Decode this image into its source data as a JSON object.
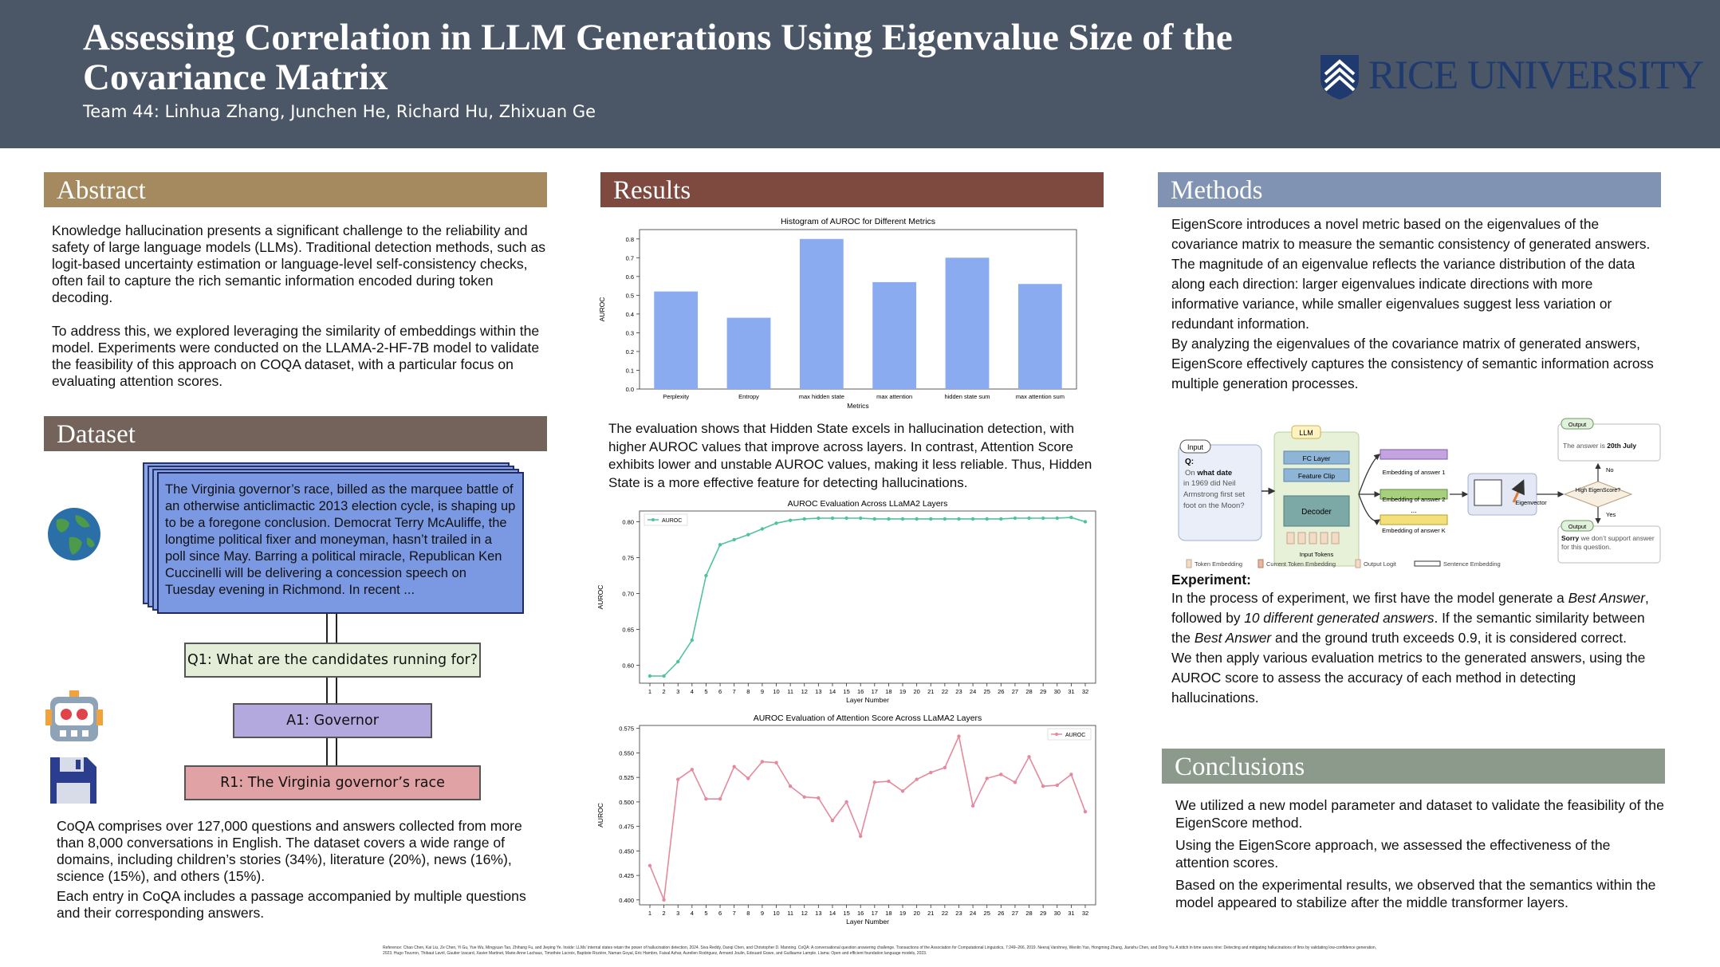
{
  "header": {
    "title_line1": "Assessing Correlation in LLM Generations Using Eigenvalue Size of the",
    "title_line2": "Covariance Matrix",
    "authors": "Team 44: Linhua Zhang, Junchen He, Richard Hu, Zhixuan Ge",
    "logo_text": "RICE UNIVERSITY"
  },
  "colors": {
    "header": "#4b5667",
    "abstract": "#a58a60",
    "dataset": "#74635a",
    "results": "#7e4a40",
    "methods": "#8193b2",
    "conclusions": "#8b9a8a"
  },
  "abstract": {
    "heading": "Abstract",
    "p1": "Knowledge hallucination presents a significant challenge to the reliability and safety of large language models (LLMs). Traditional detection methods, such as logit-based uncertainty estimation or language-level self-consistency checks, often fail to capture the rich semantic information encoded during token decoding.",
    "p2": "To address this, we explored leveraging the similarity of embeddings within the model. Experiments were conducted on the LLAMA-2-HF-7B model to validate the feasibility of this approach on COQA dataset, with a particular focus on evaluating attention scores."
  },
  "dataset": {
    "heading": "Dataset",
    "passage": "The Virginia governor’s race, billed as the marquee battle of an otherwise anticlimactic 2013 election cycle, is shaping up to be a foregone conclusion. Democrat Terry McAuliffe, the longtime political fixer and moneyman, hasn’t trailed in a poll since May. Barring a political miracle, Republican Ken Cuccinelli will be delivering a concession speech on Tuesday evening in Richmond. In recent ...",
    "q1": "Q1: What are the candidates running for?",
    "a1": "A1: Governor",
    "r1": "R1: The Virginia governor’s race",
    "p1": "CoQA comprises over 127,000 questions and answers collected from more than 8,000 conversations in English. The dataset covers a wide range of domains, including children’s stories (34%), literature (20%), news (16%), science (15%), and others (15%).",
    "p2": "Each entry in CoQA includes a passage accompanied by multiple questions and their corresponding answers.",
    "icons": [
      "globe-icon",
      "robot-icon",
      "floppy-disk-icon"
    ]
  },
  "results": {
    "heading": "Results",
    "text": "The evaluation shows that Hidden State excels in hallucination detection, with higher AUROC values that improve across layers. In contrast, Attention Score exhibits lower and unstable AUROC values, making it less reliable. Thus, Hidden State is a more effective feature for detecting hallucinations."
  },
  "chart_data": [
    {
      "type": "bar",
      "title": "Histogram of AUROC for Different Metrics",
      "xlabel": "Metrics",
      "ylabel": "AUROC",
      "categories": [
        "Perplexity",
        "Entropy",
        "max hidden state",
        "max attention",
        "hidden state sum",
        "max attention sum"
      ],
      "values": [
        0.52,
        0.38,
        0.8,
        0.57,
        0.7,
        0.56
      ],
      "ylim": [
        0,
        0.85
      ],
      "yticks": [
        "0.0",
        "0.1",
        "0.2",
        "0.3",
        "0.4",
        "0.5",
        "0.6",
        "0.7",
        "0.8"
      ],
      "color": "#8aabef"
    },
    {
      "type": "line",
      "title": "AUROC Evaluation Across LLaMA2 Layers",
      "xlabel": "Layer Number",
      "ylabel": "AUROC",
      "legend": "top-left",
      "series": [
        {
          "name": "AUROC",
          "color": "#4fc49a",
          "values": [
            0.585,
            0.585,
            0.605,
            0.635,
            0.725,
            0.768,
            0.775,
            0.782,
            0.79,
            0.798,
            0.802,
            0.804,
            0.805,
            0.805,
            0.805,
            0.805,
            0.804,
            0.804,
            0.804,
            0.804,
            0.804,
            0.804,
            0.804,
            0.804,
            0.804,
            0.804,
            0.805,
            0.805,
            0.805,
            0.805,
            0.806,
            0.8
          ]
        }
      ],
      "x": [
        1,
        2,
        3,
        4,
        5,
        6,
        7,
        8,
        9,
        10,
        11,
        12,
        13,
        14,
        15,
        16,
        17,
        18,
        19,
        20,
        21,
        22,
        23,
        24,
        25,
        26,
        27,
        28,
        29,
        30,
        31,
        32
      ],
      "ylim": [
        0.575,
        0.815
      ],
      "yticks": [
        "0.60",
        "0.65",
        "0.70",
        "0.75",
        "0.80"
      ]
    },
    {
      "type": "line",
      "title": "AUROC Evaluation of Attention Score Across LLaMA2 Layers",
      "xlabel": "Layer Number",
      "ylabel": "AUROC",
      "legend": "top-right",
      "series": [
        {
          "name": "AUROC",
          "color": "#e48a9c",
          "values": [
            0.435,
            0.4,
            0.523,
            0.533,
            0.503,
            0.503,
            0.536,
            0.524,
            0.541,
            0.54,
            0.516,
            0.505,
            0.504,
            0.481,
            0.5,
            0.465,
            0.52,
            0.521,
            0.511,
            0.523,
            0.53,
            0.535,
            0.567,
            0.496,
            0.524,
            0.528,
            0.52,
            0.546,
            0.516,
            0.517,
            0.528,
            0.49
          ]
        }
      ],
      "x": [
        1,
        2,
        3,
        4,
        5,
        6,
        7,
        8,
        9,
        10,
        11,
        12,
        13,
        14,
        15,
        16,
        17,
        18,
        19,
        20,
        21,
        22,
        23,
        24,
        25,
        26,
        27,
        28,
        29,
        30,
        31,
        32
      ],
      "ylim": [
        0.395,
        0.578
      ],
      "yticks": [
        "0.400",
        "0.425",
        "0.450",
        "0.475",
        "0.500",
        "0.525",
        "0.550",
        "0.575"
      ]
    }
  ],
  "methods": {
    "heading": "Methods",
    "p1": "EigenScore introduces a novel metric based on the eigenvalues of the covariance matrix to measure the semantic consistency of generated answers.",
    "p2": "The magnitude of an eigenvalue reflects the variance distribution of the data along each direction: larger eigenvalues indicate directions with more informative variance, while smaller eigenvalues suggest less variation or redundant information.",
    "p3": "By analyzing the eigenvalues of the covariance matrix of generated answers, EigenScore effectively captures the consistency of semantic information across multiple generation processes.",
    "diagram": {
      "input_label": "Input",
      "q_label": "Q:",
      "q_prefix": "On",
      "q_what_date": "what date",
      "q_rest": "in 1969 did Neil Armstrong first set foot on the Moon?",
      "llm_label": "LLM",
      "fc_layer": "FC Layer",
      "feature_clip": "Feature Clip",
      "decoder": "Decoder",
      "input_tokens": "Input Tokens",
      "emb1": "Embedding of answer 1",
      "emb2": "Embedding of answer 2",
      "embk": "Embedding of answer K",
      "dots": "...",
      "eigenvector": "Eigenvector",
      "decision": "High EigenScore?",
      "no": "No",
      "yes": "Yes",
      "output_label": "Output",
      "out_top_prefix": "The answer is",
      "out_top_bold": "20th July",
      "out_bottom_bold": "Sorry",
      "out_bottom_rest": "we don’t support answer for this question.",
      "legend_token": "Token Embedding",
      "legend_current": "Current Token Embedding",
      "legend_logit": "Output Logit",
      "legend_sentence": "Sentence Embedding"
    },
    "exp_heading": "Experiment:",
    "exp_p1_a": "In the process of experiment, we first have the model generate a ",
    "exp_p1_b": "Best Answer",
    "exp_p1_c": ", followed by ",
    "exp_p1_d": "10 different generated answers",
    "exp_p1_e": ". If the semantic similarity between the ",
    "exp_p1_f": "Best Answer",
    "exp_p1_g": " and the ground truth exceeds 0.9, it is considered correct.",
    "exp_p2": "We then apply various evaluation metrics to the generated answers, using the AUROC score to assess the accuracy of each method in detecting hallucinations."
  },
  "conclusions": {
    "heading": "Conclusions",
    "p1": "We utilized a new model parameter and dataset to validate the feasibility of the EigenScore method.",
    "p2": "Using the EigenScore approach, we assessed the effectiveness of the attention scores.",
    "p3": "Based on the experimental results, we observed that the semantics within the model appeared to stabilize after the middle transformer layers."
  },
  "reference": "Reference: Chao Chen, Kai Liu, Ze Chen, Yi Gu, Yue Wu, Mingyuan Tao, Zhihang Fu, and Jieping Ye. Inside: LLMs' internal states retain the power of hallucination detection, 2024. Siva Reddy, Danqi Chen, and Christopher D. Manning. CoQA: A conversational question answering challenge. Transactions of the Association for Computational Linguistics, 7:249–266, 2019. Neeraj Varshney, Wenlin Yao, Hongming Zhang, Jianshu Chen, and Dong Yu. A stitch in time saves nine: Detecting and mitigating hallucinations of llms by validating low-confidence generation, 2023. Hugo Touvron, Thibaut Lavril, Gautier Izacard, Xavier Martinet, Marie-Anne Lachaux, Timothée Lacroix, Baptiste Rozière, Naman Goyal, Eric Hambro, Faisal Azhar, Aurelien Rodriguez, Armand Joulin, Edouard Grave, and Guillaume Lample. Llama: Open and efficient foundation language models, 2023."
}
